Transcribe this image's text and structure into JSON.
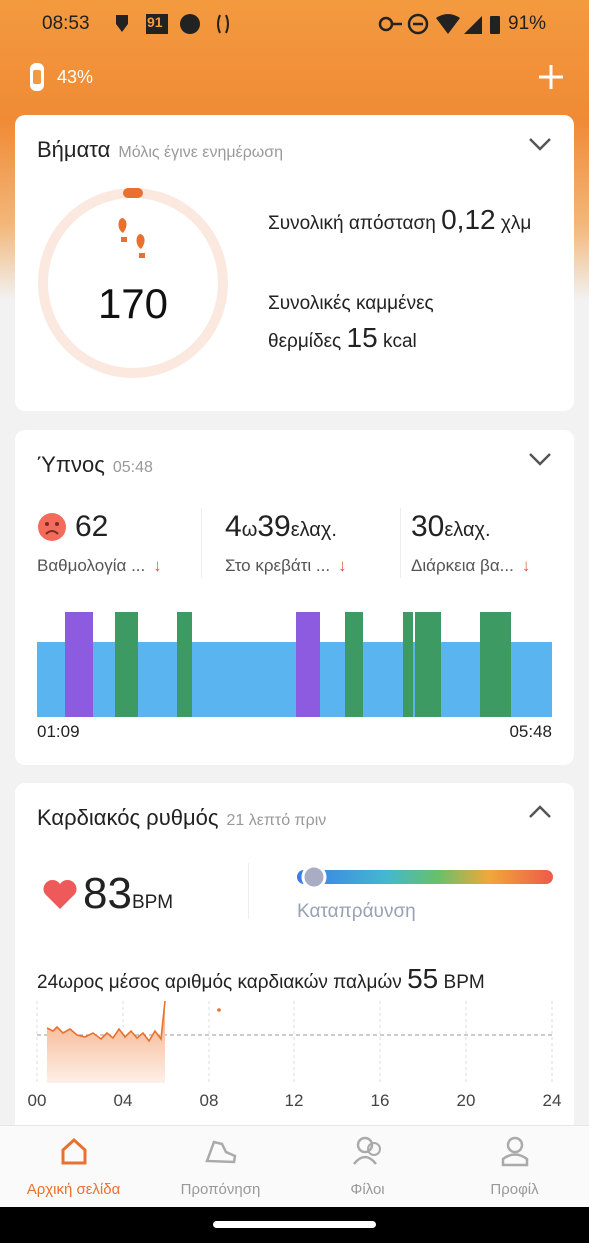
{
  "status_bar": {
    "time": "08:53",
    "notification_badge": "91",
    "battery": "91%"
  },
  "header": {
    "device_battery": "43%"
  },
  "steps": {
    "title": "Βήματα",
    "updated": "Μόλις έγινε ενημέρωση",
    "count": 170,
    "distance_label": "Συνολική απόσταση",
    "distance_value": "0,12",
    "distance_unit": "χλμ",
    "calories_label": "Συνολικές καμμένες θερμίδες",
    "calories_value": 15,
    "calories_unit": "kcal"
  },
  "sleep": {
    "title": "Ύπνος",
    "time": "05:48",
    "metrics": [
      {
        "parts": [
          "62"
        ],
        "label": "Βαθμολογία ..."
      },
      {
        "parts": [
          "4",
          "ω",
          "39",
          "ελαχ."
        ],
        "label": "Στο κρεβάτι ..."
      },
      {
        "parts": [
          "30",
          "ελαχ."
        ],
        "label": "Διάρκεια βα..."
      }
    ],
    "start": "01:09",
    "end": "05:48"
  },
  "heart": {
    "title": "Καρδιακός ρυθμός",
    "updated": "21 λεπτό πριν",
    "bpm": 83,
    "bpm_unit": "BPM",
    "zone": "Καταπράυνση",
    "avg_label": "24ωρος μέσος αριθμός καρδιακών παλμών",
    "avg_value": 55,
    "avg_unit": "BPM",
    "x_labels": [
      "00",
      "04",
      "08",
      "12",
      "16",
      "20",
      "24"
    ]
  },
  "nav": [
    "Αρχική σελίδα",
    "Προπόνηση",
    "Φίλοι",
    "Προφίλ"
  ]
}
